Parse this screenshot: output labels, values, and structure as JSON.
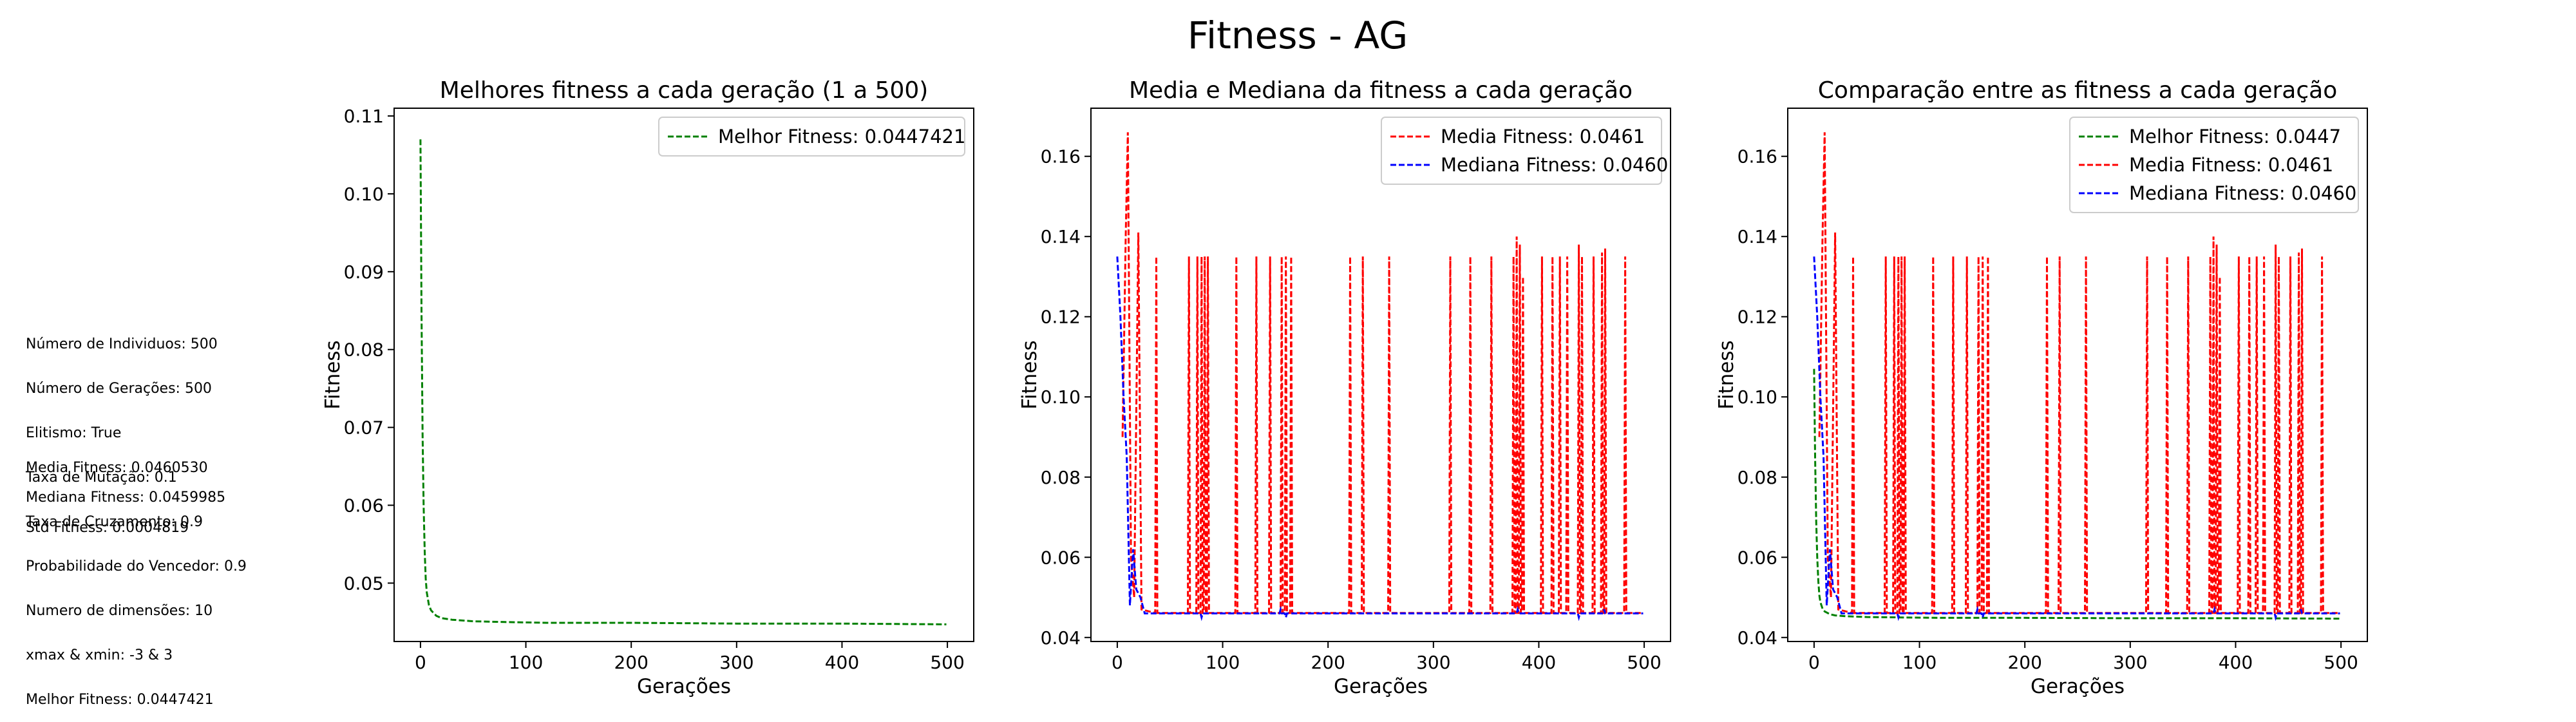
{
  "suptitle": "Fitness - AG",
  "info": {
    "lines": [
      "Número de Individuos: 500",
      "Número de Gerações: 500",
      "Elitismo: True",
      "Taxa de Mutação: 0.1",
      "Taxa de Cruzamento: 0.9",
      "Probabilidade do Vencedor: 0.9",
      "Numero de dimensões: 10",
      "xmax & xmin: -3 & 3",
      "Melhor Fitness: 0.0447421"
    ],
    "media": "Media Fitness: 0.0460530",
    "mediana": "Mediana Fitness: 0.0459985",
    "std": "Std Fitness: 0.0004819"
  },
  "colors": {
    "best": "#008000",
    "mean": "#ff0000",
    "median": "#0000ff"
  },
  "chart_data": [
    {
      "type": "line",
      "title": "Melhores fitness a cada geração (1 a 500)",
      "xlabel": "Gerações",
      "ylabel": "Fitness",
      "xlim": [
        -25,
        525
      ],
      "ylim": [
        0.0425,
        0.111
      ],
      "xticks": [
        0,
        100,
        200,
        300,
        400,
        500
      ],
      "yticks": [
        0.05,
        0.06,
        0.07,
        0.08,
        0.09,
        0.1,
        0.11
      ],
      "legend_position": "top-right",
      "series": [
        {
          "name": "Melhor Fitness: 0.0447421",
          "key": "best",
          "points": [
            [
              0,
              0.107
            ],
            [
              1,
              0.085
            ],
            [
              2,
              0.069
            ],
            [
              3,
              0.06
            ],
            [
              4,
              0.054
            ],
            [
              5,
              0.0505
            ],
            [
              6,
              0.0488
            ],
            [
              8,
              0.0472
            ],
            [
              10,
              0.0465
            ],
            [
              15,
              0.0458
            ],
            [
              20,
              0.0455
            ],
            [
              30,
              0.0453
            ],
            [
              50,
              0.0451
            ],
            [
              80,
              0.045
            ],
            [
              120,
              0.0449
            ],
            [
              200,
              0.0449
            ],
            [
              300,
              0.0448
            ],
            [
              400,
              0.0448
            ],
            [
              499,
              0.0447
            ]
          ]
        }
      ]
    },
    {
      "type": "line",
      "title": "Media e Mediana da fitness a cada geração",
      "xlabel": "Gerações",
      "ylabel": "Fitness",
      "xlim": [
        -25,
        525
      ],
      "ylim": [
        0.039,
        0.172
      ],
      "xticks": [
        0,
        100,
        200,
        300,
        400,
        500
      ],
      "yticks": [
        0.04,
        0.06,
        0.08,
        0.1,
        0.12,
        0.14,
        0.16
      ],
      "legend_position": "top-right",
      "series": [
        {
          "name": "Media Fitness: 0.0461",
          "key": "mean",
          "base": 0.0461,
          "points": [
            [
              5,
              0.09
            ],
            [
              8,
              0.14
            ],
            [
              10,
              0.166
            ],
            [
              13,
              0.06
            ],
            [
              16,
              0.05
            ],
            [
              20,
              0.141
            ],
            [
              23,
              0.047
            ]
          ],
          "spikes": [
            [
              37,
              0.135
            ],
            [
              68,
              0.135
            ],
            [
              76,
              0.135
            ],
            [
              80,
              0.135
            ],
            [
              83,
              0.135
            ],
            [
              86,
              0.135
            ],
            [
              113,
              0.135
            ],
            [
              132,
              0.135
            ],
            [
              145,
              0.135
            ],
            [
              156,
              0.135
            ],
            [
              160,
              0.135
            ],
            [
              165,
              0.135
            ],
            [
              221,
              0.135
            ],
            [
              233,
              0.135
            ],
            [
              258,
              0.135
            ],
            [
              316,
              0.135
            ],
            [
              335,
              0.135
            ],
            [
              355,
              0.135
            ],
            [
              376,
              0.135
            ],
            [
              379,
              0.14
            ],
            [
              382,
              0.138
            ],
            [
              385,
              0.13
            ],
            [
              403,
              0.135
            ],
            [
              413,
              0.135
            ],
            [
              420,
              0.135
            ],
            [
              427,
              0.135
            ],
            [
              438,
              0.138
            ],
            [
              441,
              0.135
            ],
            [
              452,
              0.135
            ],
            [
              460,
              0.136
            ],
            [
              463,
              0.137
            ],
            [
              482,
              0.135
            ]
          ]
        },
        {
          "name": "Mediana Fitness: 0.0460",
          "key": "median",
          "base": 0.046,
          "points": [
            [
              0,
              0.135
            ],
            [
              3,
              0.12
            ],
            [
              6,
              0.1
            ],
            [
              9,
              0.085
            ],
            [
              12,
              0.048
            ],
            [
              15,
              0.062
            ],
            [
              18,
              0.052
            ],
            [
              22,
              0.05
            ],
            [
              26,
              0.046
            ]
          ],
          "spikes": [
            [
              80,
              0.045
            ],
            [
              155,
              0.047
            ],
            [
              160,
              0.045
            ],
            [
              380,
              0.047
            ],
            [
              438,
              0.045
            ],
            [
              462,
              0.047
            ]
          ]
        }
      ]
    },
    {
      "type": "line",
      "title": "Comparação entre as fitness a cada geração",
      "xlabel": "Gerações",
      "ylabel": "Fitness",
      "xlim": [
        -25,
        525
      ],
      "ylim": [
        0.039,
        0.172
      ],
      "xticks": [
        0,
        100,
        200,
        300,
        400,
        500
      ],
      "yticks": [
        0.04,
        0.06,
        0.08,
        0.1,
        0.12,
        0.14,
        0.16
      ],
      "legend_position": "top-right",
      "series": [
        {
          "name": "Melhor Fitness: 0.0447",
          "key": "best",
          "points": [
            [
              0,
              0.107
            ],
            [
              1,
              0.085
            ],
            [
              2,
              0.069
            ],
            [
              3,
              0.06
            ],
            [
              4,
              0.054
            ],
            [
              5,
              0.0505
            ],
            [
              6,
              0.0488
            ],
            [
              8,
              0.0472
            ],
            [
              10,
              0.0465
            ],
            [
              15,
              0.0458
            ],
            [
              20,
              0.0455
            ],
            [
              30,
              0.0453
            ],
            [
              50,
              0.0451
            ],
            [
              80,
              0.045
            ],
            [
              120,
              0.0449
            ],
            [
              200,
              0.0449
            ],
            [
              300,
              0.0448
            ],
            [
              400,
              0.0448
            ],
            [
              499,
              0.0447
            ]
          ]
        },
        {
          "name": "Media Fitness: 0.0461",
          "key": "mean",
          "base": 0.0461,
          "points": [
            [
              5,
              0.09
            ],
            [
              8,
              0.14
            ],
            [
              10,
              0.166
            ],
            [
              13,
              0.06
            ],
            [
              16,
              0.05
            ],
            [
              20,
              0.141
            ],
            [
              23,
              0.047
            ]
          ],
          "spikes": [
            [
              37,
              0.135
            ],
            [
              68,
              0.135
            ],
            [
              76,
              0.135
            ],
            [
              80,
              0.135
            ],
            [
              83,
              0.135
            ],
            [
              86,
              0.135
            ],
            [
              113,
              0.135
            ],
            [
              132,
              0.135
            ],
            [
              145,
              0.135
            ],
            [
              156,
              0.135
            ],
            [
              160,
              0.135
            ],
            [
              165,
              0.135
            ],
            [
              221,
              0.135
            ],
            [
              233,
              0.135
            ],
            [
              258,
              0.135
            ],
            [
              316,
              0.135
            ],
            [
              335,
              0.135
            ],
            [
              355,
              0.135
            ],
            [
              376,
              0.135
            ],
            [
              379,
              0.14
            ],
            [
              382,
              0.138
            ],
            [
              385,
              0.13
            ],
            [
              403,
              0.135
            ],
            [
              413,
              0.135
            ],
            [
              420,
              0.135
            ],
            [
              427,
              0.135
            ],
            [
              438,
              0.138
            ],
            [
              441,
              0.135
            ],
            [
              452,
              0.135
            ],
            [
              460,
              0.136
            ],
            [
              463,
              0.137
            ],
            [
              482,
              0.135
            ]
          ]
        },
        {
          "name": "Mediana Fitness: 0.0460",
          "key": "median",
          "base": 0.046,
          "points": [
            [
              0,
              0.135
            ],
            [
              3,
              0.12
            ],
            [
              6,
              0.1
            ],
            [
              9,
              0.085
            ],
            [
              12,
              0.048
            ],
            [
              15,
              0.062
            ],
            [
              18,
              0.052
            ],
            [
              22,
              0.05
            ],
            [
              26,
              0.046
            ]
          ],
          "spikes": [
            [
              80,
              0.045
            ],
            [
              155,
              0.047
            ],
            [
              160,
              0.045
            ],
            [
              380,
              0.047
            ],
            [
              438,
              0.045
            ],
            [
              462,
              0.047
            ]
          ]
        }
      ]
    }
  ]
}
